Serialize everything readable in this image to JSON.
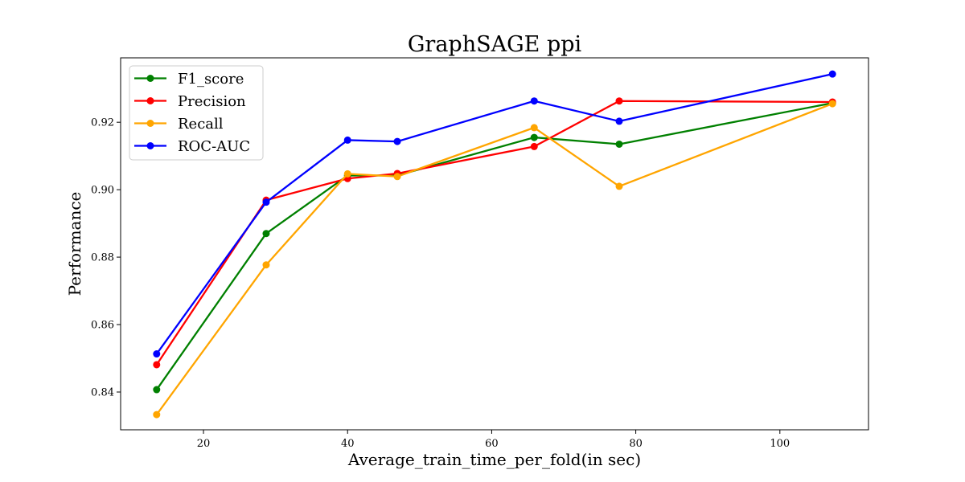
{
  "chart_data": {
    "type": "line",
    "title": "GraphSAGE ppi",
    "xlabel": "Average_train_time_per_fold(in sec)",
    "ylabel": "Performance",
    "xlim": [
      8.5,
      112.3
    ],
    "ylim": [
      0.8288,
      0.9391
    ],
    "xticks": [
      20,
      40,
      60,
      80,
      100
    ],
    "yticks": [
      0.84,
      0.86,
      0.88,
      0.9,
      0.92
    ],
    "xtick_labels": [
      "20",
      "40",
      "60",
      "80",
      "100"
    ],
    "ytick_labels": [
      "0.84",
      "0.86",
      "0.88",
      "0.90",
      "0.92"
    ],
    "grid": false,
    "legend_position": "top-left",
    "x": [
      13.5,
      28.7,
      40.0,
      46.9,
      65.9,
      77.7,
      107.3
    ],
    "series": [
      {
        "name": "F1_score",
        "color": "#008000",
        "values": [
          0.8407,
          0.887,
          0.9042,
          0.9042,
          0.9155,
          0.9135,
          0.9257
        ]
      },
      {
        "name": "Precision",
        "color": "#ff0000",
        "values": [
          0.8481,
          0.8969,
          0.9033,
          0.9048,
          0.9128,
          0.9263,
          0.926
        ]
      },
      {
        "name": "Recall",
        "color": "#ffa500",
        "values": [
          0.8333,
          0.8777,
          0.9047,
          0.9039,
          0.9184,
          0.901,
          0.9255
        ]
      },
      {
        "name": "ROC-AUC",
        "color": "#0000ff",
        "values": [
          0.8513,
          0.8963,
          0.9147,
          0.9143,
          0.9263,
          0.9203,
          0.9343
        ]
      }
    ]
  }
}
